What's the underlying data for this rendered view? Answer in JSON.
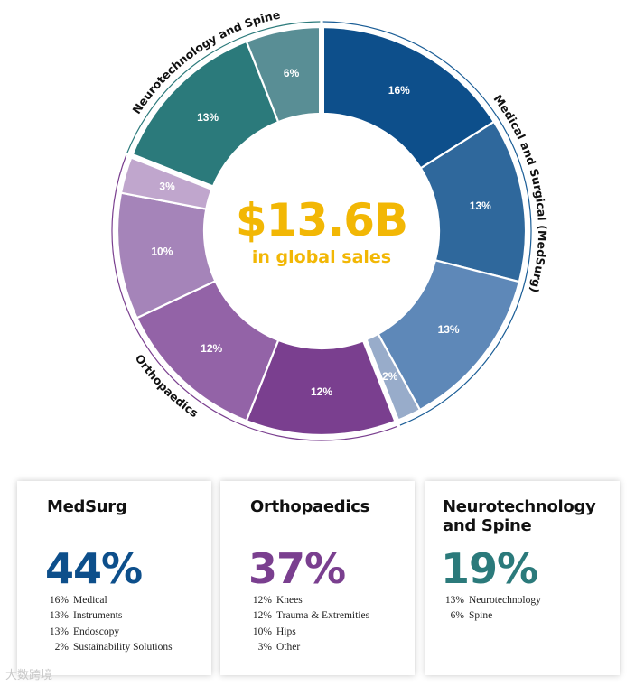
{
  "chart_data": {
    "type": "donut",
    "center": {
      "value": "$13.6B",
      "subtitle": "in global sales"
    },
    "groups": [
      {
        "name": "Medical and Surgical (MedSurg)",
        "total": 44,
        "color": "#1a5d96"
      },
      {
        "name": "Orthopaedics",
        "total": 37,
        "color": "#7a3f8f"
      },
      {
        "name": "Neurotechnology and Spine",
        "total": 19,
        "color": "#2b7a7b"
      }
    ],
    "segments": [
      {
        "group": "MedSurg",
        "label": "16%",
        "value": 16,
        "color": "#0d4f8b"
      },
      {
        "group": "MedSurg",
        "label": "13%",
        "value": 13,
        "color": "#2f689c"
      },
      {
        "group": "MedSurg",
        "label": "13%",
        "value": 13,
        "color": "#5e88b8"
      },
      {
        "group": "MedSurg",
        "label": "2%",
        "value": 2,
        "color": "#98acca"
      },
      {
        "group": "Orthopaedics",
        "label": "12%",
        "value": 12,
        "color": "#7a3f8f"
      },
      {
        "group": "Orthopaedics",
        "label": "12%",
        "value": 12,
        "color": "#9363a7"
      },
      {
        "group": "Orthopaedics",
        "label": "10%",
        "value": 10,
        "color": "#a584b9"
      },
      {
        "group": "Orthopaedics",
        "label": "3%",
        "value": 3,
        "color": "#c0a6cd"
      },
      {
        "group": "Neurotechnology and Spine",
        "label": "13%",
        "value": 13,
        "color": "#2b7a7b"
      },
      {
        "group": "Neurotechnology and Spine",
        "label": "6%",
        "value": 6,
        "color": "#598e95"
      }
    ]
  },
  "cards": [
    {
      "title": "MedSurg",
      "percent": "44%",
      "color": "#0d4f8b",
      "items": [
        {
          "pct": "16%",
          "name": "Medical"
        },
        {
          "pct": "13%",
          "name": "Instruments"
        },
        {
          "pct": "13%",
          "name": "Endoscopy"
        },
        {
          "pct": "2%",
          "name": "Sustainability Solutions"
        }
      ]
    },
    {
      "title": "Orthopaedics",
      "percent": "37%",
      "color": "#7a3f8f",
      "items": [
        {
          "pct": "12%",
          "name": "Knees"
        },
        {
          "pct": "12%",
          "name": "Trauma & Extremities"
        },
        {
          "pct": "10%",
          "name": "Hips"
        },
        {
          "pct": "3%",
          "name": "Other"
        }
      ]
    },
    {
      "title": "Neurotechnology and Spine",
      "percent": "19%",
      "color": "#2b7a7b",
      "items": [
        {
          "pct": "13%",
          "name": "Neurotechnology"
        },
        {
          "pct": "6%",
          "name": "Spine"
        }
      ]
    }
  ],
  "watermark": "大数跨境"
}
